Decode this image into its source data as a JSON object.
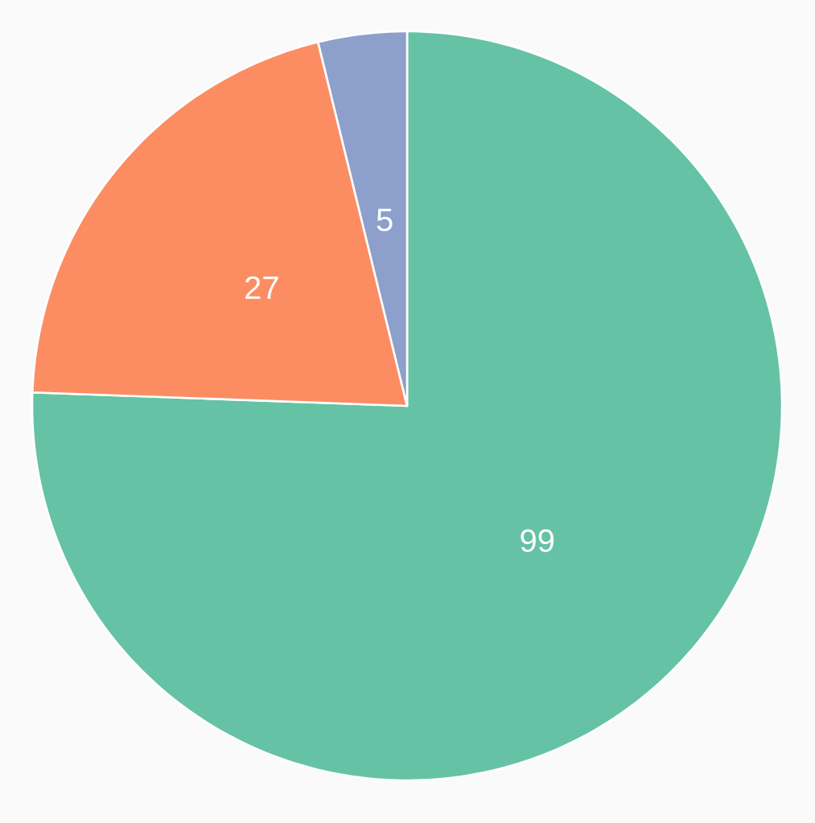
{
  "chart_data": {
    "type": "pie",
    "categories": [
      null,
      null,
      null
    ],
    "values": [
      99,
      27,
      5
    ],
    "colors": [
      "#66c2a5",
      "#fc8d62",
      "#8da0cb"
    ],
    "data_labels": true
  }
}
